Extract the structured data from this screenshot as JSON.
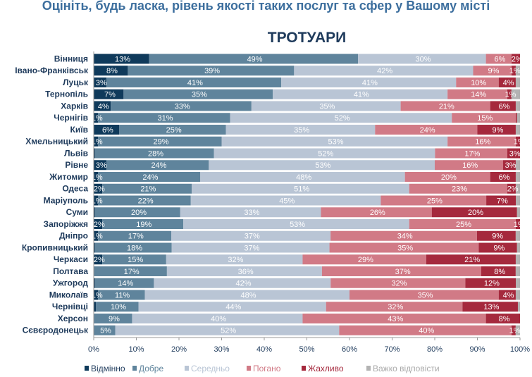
{
  "question": "Оцініть, будь ласка, рівень якості таких послуг та сфер у Вашому місті",
  "chart_data": {
    "type": "bar",
    "orientation": "horizontal-stacked-100",
    "title": "ТРОТУАРИ",
    "xlabel": "",
    "ylabel": "",
    "xlim": [
      0,
      100
    ],
    "x_ticks": [
      "0%",
      "10%",
      "20%",
      "30%",
      "40%",
      "50%",
      "60%",
      "70%",
      "80%",
      "90%",
      "100%"
    ],
    "legend_position": "bottom",
    "categories": [
      "Вінниця",
      "Івано-Франківськ",
      "Луцьк",
      "Тернопіль",
      "Харків",
      "Чернігів",
      "Київ",
      "Хмельницький",
      "Львів",
      "Рівне",
      "Житомир",
      "Одеса",
      "Маріуполь",
      "Суми",
      "Запоріжжя",
      "Дніпро",
      "Кропивницький",
      "Черкаси",
      "Полтава",
      "Ужгород",
      "Миколаїв",
      "Чернівці",
      "Херсон",
      "Сєвєродонецьк"
    ],
    "series": [
      {
        "name": "Відмінно",
        "color": "#0f3a5b",
        "values": [
          13,
          8,
          3,
          7,
          4,
          1,
          6,
          1,
          0.3,
          3,
          1,
          2,
          1,
          0.3,
          2,
          1,
          0.3,
          2,
          0,
          0.3,
          1,
          0.5,
          0,
          0
        ]
      },
      {
        "name": "Добре",
        "color": "#5f849c",
        "values": [
          49,
          39,
          41,
          35,
          33,
          31,
          25,
          29,
          28,
          24,
          24,
          21,
          22,
          20,
          19,
          17,
          18,
          15,
          17,
          14,
          11,
          10,
          9,
          5
        ]
      },
      {
        "name": "Середньо",
        "color": "#b9c5d5",
        "values": [
          30,
          42,
          41,
          41,
          35,
          52,
          35,
          53,
          52,
          53,
          48,
          51,
          45,
          33,
          53,
          37,
          37,
          32,
          36,
          42,
          48,
          44,
          40,
          52
        ]
      },
      {
        "name": "Погано",
        "color": "#d17a86",
        "values": [
          6,
          9,
          10,
          14,
          21,
          15,
          24,
          16,
          17,
          16,
          20,
          23,
          25,
          26,
          25,
          34,
          35,
          29,
          37,
          32,
          35,
          32,
          43,
          40
        ]
      },
      {
        "name": "Жахливо",
        "color": "#a5293d",
        "values": [
          2,
          1,
          4,
          1,
          6,
          0.3,
          9,
          1,
          3,
          3,
          6,
          2,
          7,
          20,
          1,
          9,
          9,
          21,
          8,
          12,
          4,
          13,
          8,
          1
        ]
      },
      {
        "name": "Важко відповісти",
        "color": "#b3b3b3",
        "values": [
          0,
          1,
          1,
          2,
          1,
          0.7,
          1,
          0,
          0,
          1,
          1,
          1,
          1,
          0.7,
          0,
          1,
          0.7,
          1,
          1,
          1,
          1,
          0.5,
          0,
          1
        ]
      }
    ]
  }
}
